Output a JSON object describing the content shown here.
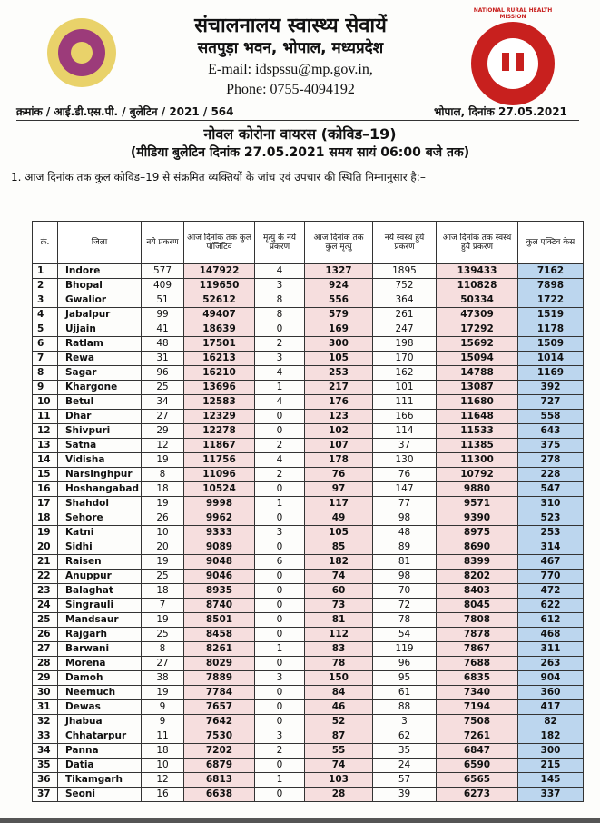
{
  "header": {
    "title": "संचालनालय स्वास्थ्य सेवायें",
    "address": "सतपुड़ा भवन, भोपाल, मध्यप्रदेश",
    "email": "E-mail: idspssu@mp.gov.in,",
    "phone": "Phone: 0755-4094192",
    "logo_text": "NATIONAL RURAL HEALTH MISSION"
  },
  "reference": {
    "number": "क्रमांक / आई.डी.एस.पी. / बुलेटिन / 2021 / 564",
    "date": "भोपाल, दिनांक 27.05.2021"
  },
  "bulletin": {
    "title": "नोवल कोरोना वायरस (कोविड–19)",
    "subtitle": "(मीडिया बुलेटिन दिनांक 27.05.2021 समय सायं 06:00 बजे तक)",
    "intro": "1. आज दिनांक तक कुल कोविड–19 से संक्रमित व्यक्तियों के जांच एवं उपचार की स्थिति निम्नानुसार है:–"
  },
  "table": {
    "columns": [
      "क्रं.",
      "जिला",
      "नये प्रकरण",
      "आज दिनांक तक कुल पॉजिटिव",
      "मृत्यु के नये प्रकरण",
      "आज दिनांक तक कुल मृत्यु",
      "नये स्वस्थ हुये प्रकरण",
      "आज दिनांक तक स्वस्थ हुये प्रकरण",
      "कुल एक्टिव केस"
    ],
    "rows": [
      [
        1,
        "Indore",
        577,
        147922,
        4,
        1327,
        1895,
        139433,
        7162
      ],
      [
        2,
        "Bhopal",
        409,
        119650,
        3,
        924,
        752,
        110828,
        7898
      ],
      [
        3,
        "Gwalior",
        51,
        52612,
        8,
        556,
        364,
        50334,
        1722
      ],
      [
        4,
        "Jabalpur",
        99,
        49407,
        8,
        579,
        261,
        47309,
        1519
      ],
      [
        5,
        "Ujjain",
        41,
        18639,
        0,
        169,
        247,
        17292,
        1178
      ],
      [
        6,
        "Ratlam",
        48,
        17501,
        2,
        300,
        198,
        15692,
        1509
      ],
      [
        7,
        "Rewa",
        31,
        16213,
        3,
        105,
        170,
        15094,
        1014
      ],
      [
        8,
        "Sagar",
        96,
        16210,
        4,
        253,
        162,
        14788,
        1169
      ],
      [
        9,
        "Khargone",
        25,
        13696,
        1,
        217,
        101,
        13087,
        392
      ],
      [
        10,
        "Betul",
        34,
        12583,
        4,
        176,
        111,
        11680,
        727
      ],
      [
        11,
        "Dhar",
        27,
        12329,
        0,
        123,
        166,
        11648,
        558
      ],
      [
        12,
        "Shivpuri",
        29,
        12278,
        0,
        102,
        114,
        11533,
        643
      ],
      [
        13,
        "Satna",
        12,
        11867,
        2,
        107,
        37,
        11385,
        375
      ],
      [
        14,
        "Vidisha",
        19,
        11756,
        4,
        178,
        130,
        11300,
        278
      ],
      [
        15,
        "Narsinghpur",
        8,
        11096,
        2,
        76,
        76,
        10792,
        228
      ],
      [
        16,
        "Hoshangabad",
        18,
        10524,
        0,
        97,
        147,
        9880,
        547
      ],
      [
        17,
        "Shahdol",
        19,
        9998,
        1,
        117,
        77,
        9571,
        310
      ],
      [
        18,
        "Sehore",
        26,
        9962,
        0,
        49,
        98,
        9390,
        523
      ],
      [
        19,
        "Katni",
        10,
        9333,
        3,
        105,
        48,
        8975,
        253
      ],
      [
        20,
        "Sidhi",
        20,
        9089,
        0,
        85,
        89,
        8690,
        314
      ],
      [
        21,
        "Raisen",
        19,
        9048,
        6,
        182,
        81,
        8399,
        467
      ],
      [
        22,
        "Anuppur",
        25,
        9046,
        0,
        74,
        98,
        8202,
        770
      ],
      [
        23,
        "Balaghat",
        18,
        8935,
        0,
        60,
        70,
        8403,
        472
      ],
      [
        24,
        "Singrauli",
        7,
        8740,
        0,
        73,
        72,
        8045,
        622
      ],
      [
        25,
        "Mandsaur",
        19,
        8501,
        0,
        81,
        78,
        7808,
        612
      ],
      [
        26,
        "Rajgarh",
        25,
        8458,
        0,
        112,
        54,
        7878,
        468
      ],
      [
        27,
        "Barwani",
        8,
        8261,
        1,
        83,
        119,
        7867,
        311
      ],
      [
        28,
        "Morena",
        27,
        8029,
        0,
        78,
        96,
        7688,
        263
      ],
      [
        29,
        "Damoh",
        38,
        7889,
        3,
        150,
        95,
        6835,
        904
      ],
      [
        30,
        "Neemuch",
        19,
        7784,
        0,
        84,
        61,
        7340,
        360
      ],
      [
        31,
        "Dewas",
        9,
        7657,
        0,
        46,
        88,
        7194,
        417
      ],
      [
        32,
        "Jhabua",
        9,
        7642,
        0,
        52,
        3,
        7508,
        82
      ],
      [
        33,
        "Chhatarpur",
        11,
        7530,
        3,
        87,
        62,
        7261,
        182
      ],
      [
        34,
        "Panna",
        18,
        7202,
        2,
        55,
        35,
        6847,
        300
      ],
      [
        35,
        "Datia",
        10,
        6879,
        0,
        74,
        24,
        6590,
        215
      ],
      [
        36,
        "Tikamgarh",
        12,
        6813,
        1,
        103,
        57,
        6565,
        145
      ],
      [
        37,
        "Seoni",
        16,
        6638,
        0,
        28,
        39,
        6273,
        337
      ]
    ]
  }
}
